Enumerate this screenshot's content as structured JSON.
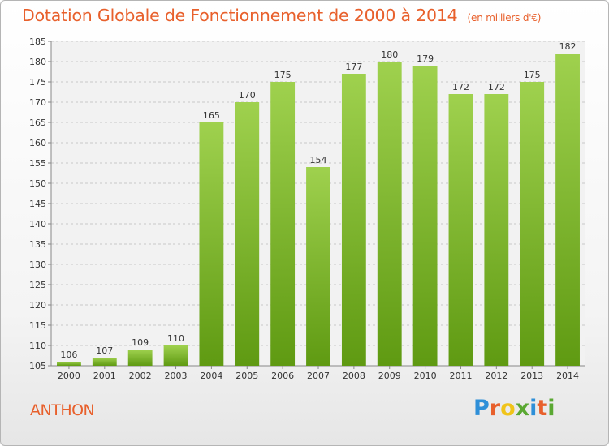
{
  "header": {
    "title": "Dotation Globale de Fonctionnement de 2000 à 2014",
    "unit": "(en milliers d'€)"
  },
  "footer": {
    "commune": "ANTHON",
    "logo": {
      "text": "Proxiti",
      "colors": [
        "#2e8fd8",
        "#e8602c",
        "#f0c419",
        "#5aa832",
        "#2e8fd8",
        "#e8602c",
        "#5aa832"
      ]
    }
  },
  "chart_data": {
    "type": "bar",
    "title": "Dotation Globale de Fonctionnement de 2000 à 2014",
    "subtitle": "(en milliers d'€)",
    "xlabel": "",
    "ylabel": "",
    "categories": [
      "2000",
      "2001",
      "2002",
      "2003",
      "2004",
      "2005",
      "2006",
      "2007",
      "2008",
      "2009",
      "2010",
      "2011",
      "2012",
      "2013",
      "2014"
    ],
    "values": [
      106,
      107,
      109,
      110,
      165,
      170,
      175,
      154,
      177,
      180,
      179,
      172,
      172,
      175,
      182
    ],
    "ylim": [
      105,
      185
    ],
    "yticks": [
      105,
      110,
      115,
      120,
      125,
      130,
      135,
      140,
      145,
      150,
      155,
      160,
      165,
      170,
      175,
      180,
      185
    ],
    "grid": true,
    "legend": "none",
    "colors": {
      "bar_top": "#9fd14e",
      "bar_bottom": "#5f9a12",
      "grid": "#c8c8c8"
    }
  }
}
